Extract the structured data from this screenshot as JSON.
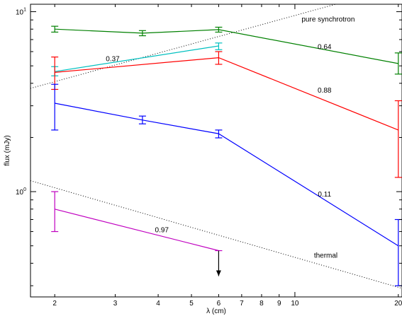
{
  "chart_data": {
    "type": "line",
    "xlabel": "λ (cm)",
    "ylabel": "flux (mJy)",
    "xscale": "log",
    "yscale": "log",
    "xlim": [
      1.7,
      20.5
    ],
    "ylim": [
      0.26,
      11.0
    ],
    "x_ticks": [
      {
        "value": 2,
        "label": "2"
      },
      {
        "value": 3,
        "label": "3"
      },
      {
        "value": 4,
        "label": "4"
      },
      {
        "value": 5,
        "label": "5"
      },
      {
        "value": 6,
        "label": "6"
      },
      {
        "value": 7,
        "label": "7"
      },
      {
        "value": 8,
        "label": "8"
      },
      {
        "value": 9,
        "label": "9"
      },
      {
        "value": 10,
        "label": "10"
      },
      {
        "value": 20,
        "label": "20"
      }
    ],
    "y_major_ticks": [
      {
        "value": 1,
        "base": "10",
        "exp": "0"
      },
      {
        "value": 10,
        "base": "10",
        "exp": "1"
      }
    ],
    "y_minor_ticks": [
      0.3,
      0.4,
      0.5,
      0.6,
      0.7,
      0.8,
      0.9,
      2,
      3,
      4,
      5,
      6,
      7,
      8,
      9
    ],
    "series": [
      {
        "color": "#008000",
        "points": [
          {
            "x": 2,
            "y": 8.0,
            "lo": 7.7,
            "hi": 8.3
          },
          {
            "x": 3.6,
            "y": 7.6,
            "lo": 7.35,
            "hi": 7.85
          },
          {
            "x": 6,
            "y": 7.95,
            "lo": 7.7,
            "hi": 8.2
          },
          {
            "x": 20,
            "y": 5.15,
            "lo": 4.5,
            "hi": 5.9
          }
        ]
      },
      {
        "color": "#00c0c0",
        "points": [
          {
            "x": 2,
            "y": 4.65,
            "lo": 4.4,
            "hi": 4.95
          },
          {
            "x": 6,
            "y": 6.45,
            "lo": 6.15,
            "hi": 6.7
          }
        ]
      },
      {
        "color": "#ff0000",
        "points": [
          {
            "x": 2,
            "y": 4.6,
            "lo": 3.7,
            "hi": 5.6
          },
          {
            "x": 6,
            "y": 5.55,
            "lo": 5.1,
            "hi": 6.0
          },
          {
            "x": 20,
            "y": 2.2,
            "lo": 1.2,
            "hi": 3.2
          }
        ]
      },
      {
        "color": "#0000ff",
        "points": [
          {
            "x": 2,
            "y": 3.1,
            "lo": 2.2,
            "hi": 3.95
          },
          {
            "x": 3.6,
            "y": 2.5,
            "lo": 2.38,
            "hi": 2.63
          },
          {
            "x": 6,
            "y": 2.1,
            "lo": 1.99,
            "hi": 2.2
          },
          {
            "x": 20,
            "y": 0.5,
            "lo": 0.3,
            "hi": 0.7
          }
        ]
      },
      {
        "color": "#c000c0",
        "points": [
          {
            "x": 2,
            "y": 0.8,
            "lo": 0.6,
            "hi": 1.0
          },
          {
            "x": 6,
            "y": 0.47,
            "upper_limit": true
          }
        ]
      }
    ],
    "reference_lines": [
      {
        "label": "pure synchrotron",
        "style": "dotted",
        "from": {
          "x": 1.7,
          "y": 3.75
        },
        "to": {
          "x": 20.5,
          "y": 13.9
        }
      },
      {
        "label": "thermal",
        "style": "dotted",
        "from": {
          "x": 1.7,
          "y": 1.15
        },
        "to": {
          "x": 20.5,
          "y": 0.29
        }
      }
    ],
    "annotations": [
      {
        "text": "pure synchrotron",
        "x": 12.5,
        "y": 8.8
      },
      {
        "text": "0.37",
        "x": 2.95,
        "y": 5.3
      },
      {
        "text": "0.64",
        "x": 12.2,
        "y": 6.2
      },
      {
        "text": "0.88",
        "x": 12.2,
        "y": 3.55
      },
      {
        "text": "0.11",
        "x": 12.2,
        "y": 0.94
      },
      {
        "text": "0.97",
        "x": 4.1,
        "y": 0.595
      },
      {
        "text": "thermal",
        "x": 12.3,
        "y": 0.43
      }
    ]
  }
}
